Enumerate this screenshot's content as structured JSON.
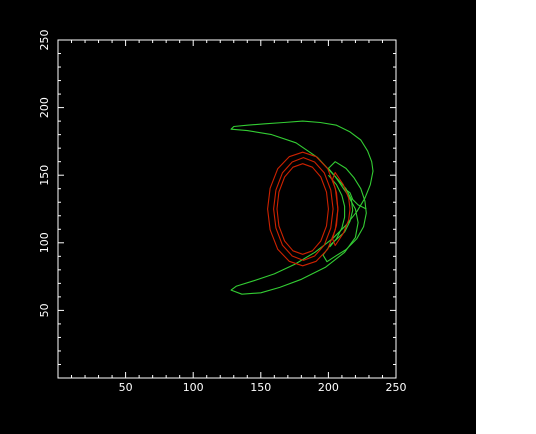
{
  "colors": {
    "background": "#000000",
    "axis": "#ffffff",
    "outer_contour": "#33cc33",
    "inner_contour": "#cc2200"
  },
  "chart_data": {
    "type": "line",
    "title": "",
    "xlabel": "",
    "ylabel": "",
    "xlim": [
      0,
      250
    ],
    "ylim": [
      0,
      250
    ],
    "grid": false,
    "xticks": [
      50,
      100,
      150,
      200,
      250
    ],
    "yticks": [
      50,
      100,
      150,
      200,
      250
    ],
    "series": [
      {
        "color": "#33cc33",
        "closed": true,
        "x": [
          128,
          132,
          145,
          160,
          175,
          190,
          203,
          213,
          221,
          227,
          231,
          233,
          232,
          229,
          224,
          216,
          206,
          194,
          181,
          167,
          153,
          140,
          130,
          128,
          140,
          158,
          176,
          192,
          205,
          214,
          220,
          222,
          220,
          212,
          198,
          180,
          164,
          150,
          136,
          128
        ],
        "y": [
          65,
          68,
          72,
          77,
          84,
          93,
          103,
          113,
          123,
          133,
          143,
          153,
          160,
          168,
          176,
          182,
          187,
          189,
          190,
          189,
          188,
          187,
          186,
          184,
          183,
          180,
          174,
          163,
          149,
          136,
          125,
          115,
          104,
          93,
          82,
          73,
          67,
          63,
          62,
          65
        ]
      },
      {
        "color": "#33cc33",
        "closed": true,
        "x": [
          205,
          213,
          219,
          224,
          227,
          228,
          226,
          221,
          213,
          205,
          199,
          196,
          202,
          212,
          216,
          218,
          217,
          213,
          206,
          200,
          205
        ],
        "y": [
          160,
          155,
          148,
          140,
          131,
          122,
          112,
          103,
          95,
          90,
          86,
          91,
          99,
          108,
          116,
          124,
          132,
          140,
          148,
          155,
          160
        ]
      },
      {
        "color": "#33cc33",
        "closed": false,
        "x": [
          200,
          206,
          210,
          212,
          212,
          210,
          206,
          201
        ],
        "y": [
          150,
          143,
          135,
          127,
          119,
          111,
          103,
          97
        ]
      },
      {
        "color": "#33cc33",
        "closed": false,
        "x": [
          212,
          216,
          218,
          222,
          226,
          228
        ],
        "y": [
          140,
          137,
          132,
          128,
          126,
          125
        ]
      },
      {
        "color": "#cc2200",
        "closed": true,
        "x": [
          207,
          205.1,
          199.5,
          191,
          181,
          171,
          162.5,
          156.9,
          155,
          156.9,
          162.5,
          171,
          181,
          191,
          199.5,
          205.1
        ],
        "y": [
          125,
          140.3,
          154.7,
          163.7,
          167,
          163.7,
          154.7,
          140.3,
          125,
          109.7,
          95.3,
          86.3,
          83,
          86.3,
          95.3,
          109.7
        ]
      },
      {
        "color": "#cc2200",
        "closed": true,
        "x": [
          203.5,
          201.8,
          197,
          189.8,
          181.5,
          173.2,
          166,
          161.2,
          159.5,
          161.2,
          166,
          173.2,
          181.5,
          189.8,
          197,
          201.8
        ],
        "y": [
          125,
          139,
          151.7,
          159.8,
          163,
          159.8,
          151.7,
          139,
          125,
          111,
          98.3,
          90.2,
          87,
          90.2,
          98.3,
          111
        ]
      },
      {
        "color": "#cc2200",
        "closed": true,
        "x": [
          200,
          198.6,
          194.4,
          188.2,
          181,
          173.8,
          167.6,
          163.4,
          162,
          163.4,
          167.6,
          173.8,
          181,
          188.2,
          194.4,
          198.6
        ],
        "y": [
          125,
          137.5,
          148.7,
          155.9,
          158.5,
          155.9,
          148.7,
          137.5,
          125,
          112.5,
          101.3,
          94.1,
          91.5,
          94.1,
          101.3,
          112.5
        ]
      },
      {
        "color": "#cc2200",
        "closed": true,
        "x": [
          205,
          211,
          215,
          216,
          215,
          211,
          205,
          203,
          206,
          207,
          206,
          203,
          205
        ],
        "y": [
          152,
          143,
          133,
          125,
          117,
          107,
          98,
          103,
          113,
          125,
          137,
          147,
          152
        ]
      }
    ]
  }
}
